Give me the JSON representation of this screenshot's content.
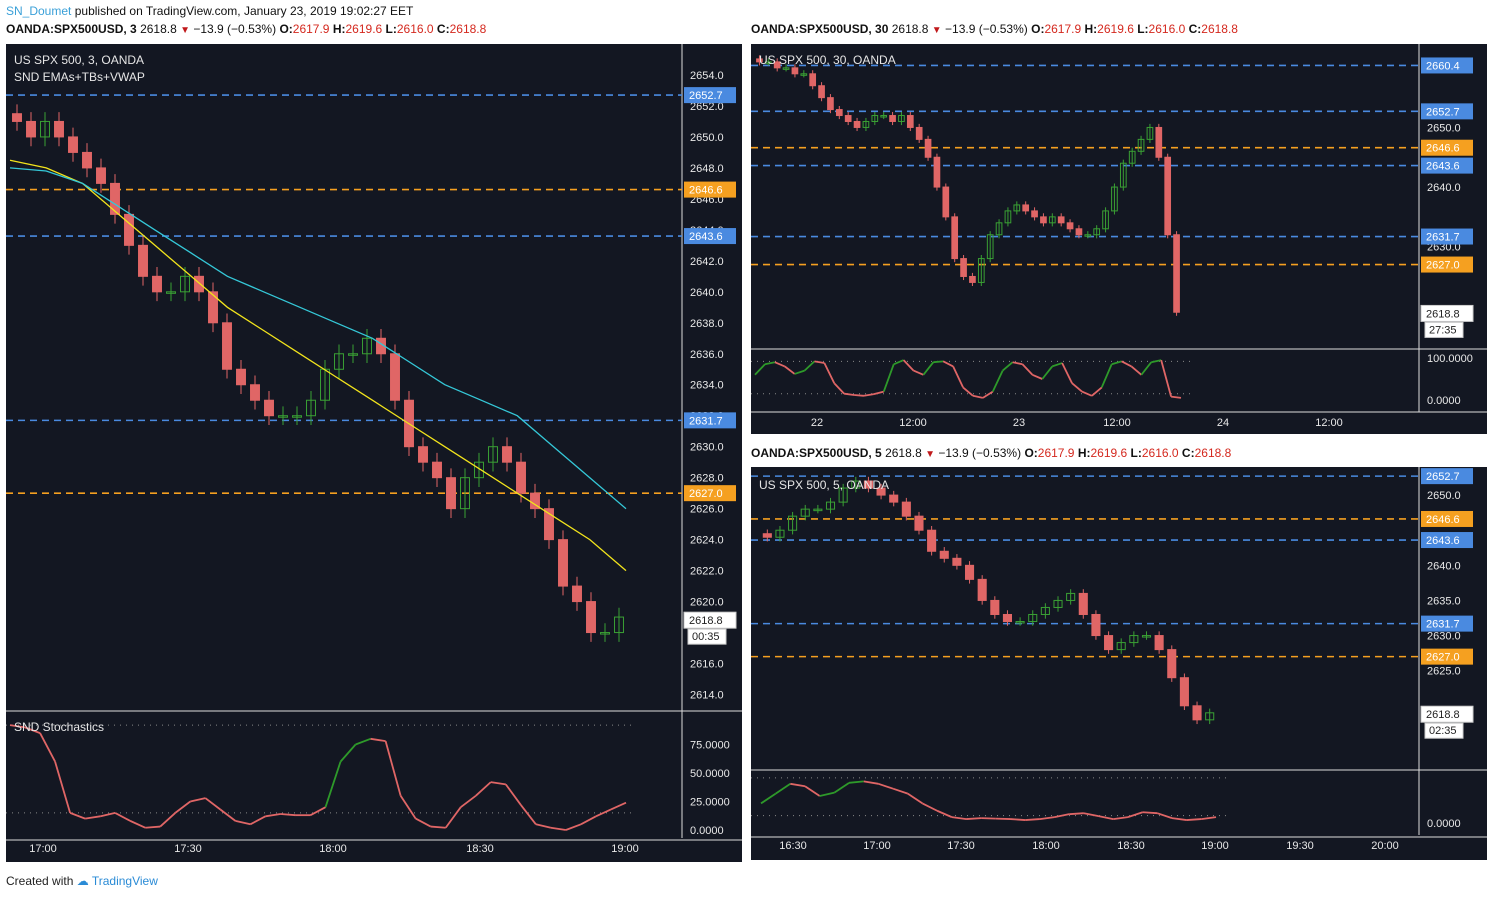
{
  "header": {
    "author": "SN_Doumet",
    "published": "published on TradingView.com, January 23, 2019 19:02:27 EET"
  },
  "footer": {
    "created_with": "Created with",
    "brand": "TradingView"
  },
  "charts": [
    {
      "info": {
        "ticker": "OANDA:SPX500USD, 3",
        "last": "2618.8",
        "change": "−13.9 (−0.53%)",
        "o": "2617.9",
        "h": "2619.6",
        "l": "2616.0",
        "c": "2618.8"
      },
      "title": "US SPX 500, 3, OANDA",
      "subtitle": "SND EMAs+TBs+VWAP",
      "osc_label": "SND Stochastics"
    },
    {
      "info": {
        "ticker": "OANDA:SPX500USD, 30",
        "last": "2618.8",
        "change": "−13.9 (−0.53%)",
        "o": "2617.9",
        "h": "2619.6",
        "l": "2616.0",
        "c": "2618.8"
      },
      "title": "US SPX 500, 30, OANDA"
    },
    {
      "info": {
        "ticker": "OANDA:SPX500USD, 5",
        "last": "2618.8",
        "change": "−13.9 (−0.53%)",
        "o": "2617.9",
        "h": "2619.6",
        "l": "2616.0",
        "c": "2618.8"
      },
      "title": "US SPX 500, 5, OANDA"
    }
  ],
  "chart_data": [
    {
      "type": "line",
      "timeframe": "3",
      "y_ticks": [
        "2654.0",
        "2652.0",
        "2650.0",
        "2648.0",
        "2646.0",
        "2644.0",
        "2642.0",
        "2640.0",
        "2638.0",
        "2636.0",
        "2634.0",
        "2632.0",
        "2630.0",
        "2628.0",
        "2626.0",
        "2624.0",
        "2622.0",
        "2620.0",
        "2616.0",
        "2614.0"
      ],
      "ylim": [
        2613,
        2656
      ],
      "x_ticks": [
        "17:00",
        "17:30",
        "18:00",
        "18:30",
        "19:00"
      ],
      "levels": [
        {
          "value": 2652.7,
          "label": "2652.7",
          "color": "#4a8ae0"
        },
        {
          "value": 2646.6,
          "label": "2646.6",
          "color": "#f5a020"
        },
        {
          "value": 2643.6,
          "label": "2643.6",
          "color": "#4a8ae0"
        },
        {
          "value": 2631.7,
          "label": "2631.7",
          "color": "#4a8ae0"
        },
        {
          "value": 2627.0,
          "label": "2627.0",
          "color": "#f5a020"
        }
      ],
      "price_label": "2618.8",
      "countdown": "00:35",
      "closes": [
        2651,
        2650,
        2651,
        2650,
        2649,
        2648,
        2647,
        2645,
        2643,
        2641,
        2640,
        2640,
        2641,
        2640,
        2638,
        2635,
        2634,
        2633,
        2632,
        2632,
        2632,
        2633,
        2635,
        2636,
        2636,
        2637,
        2636,
        2633,
        2630,
        2629,
        2628,
        2626,
        2628,
        2629,
        2630,
        2629,
        2627,
        2626,
        2624,
        2621,
        2620,
        2618,
        2618,
        2619
      ],
      "ema_fast": [
        2648.5,
        2648,
        2647,
        2645,
        2643,
        2641,
        2639,
        2637.5,
        2636,
        2634.5,
        2633,
        2631.5,
        2630,
        2628.5,
        2627,
        2625.5,
        2624,
        2622
      ],
      "ema_slow": [
        2648,
        2647.8,
        2647,
        2645.5,
        2644,
        2642.5,
        2641,
        2640,
        2639,
        2638,
        2637,
        2635.5,
        2634,
        2633,
        2632,
        2630,
        2628,
        2626
      ],
      "y_ticks_osc": [
        "75.0000",
        "50.0000",
        "25.0000",
        "0.0000"
      ],
      "stochastic": [
        92,
        90,
        85,
        60,
        15,
        10,
        12,
        15,
        8,
        2,
        3,
        15,
        25,
        28,
        18,
        8,
        5,
        12,
        14,
        13,
        13,
        20,
        60,
        75,
        80,
        78,
        30,
        10,
        3,
        2,
        20,
        30,
        42,
        40,
        22,
        5,
        2,
        0,
        5,
        12,
        18,
        24
      ]
    },
    {
      "type": "line",
      "timeframe": "30",
      "y_ticks": [
        "2650.0",
        "2640.0",
        "2630.0"
      ],
      "ylim": [
        2613,
        2664
      ],
      "x_ticks": [
        "22",
        "12:00",
        "23",
        "12:00",
        "24",
        "12:00"
      ],
      "levels": [
        {
          "value": 2660.4,
          "label": "2660.4",
          "color": "#4a8ae0"
        },
        {
          "value": 2652.7,
          "label": "2652.7",
          "color": "#4a8ae0"
        },
        {
          "value": 2646.6,
          "label": "2646.6",
          "color": "#f5a020"
        },
        {
          "value": 2643.6,
          "label": "2643.6",
          "color": "#4a8ae0"
        },
        {
          "value": 2631.7,
          "label": "2631.7",
          "color": "#4a8ae0"
        },
        {
          "value": 2627.0,
          "label": "2627.0",
          "color": "#f5a020"
        }
      ],
      "price_label": "2618.8",
      "countdown": "27:35",
      "closes": [
        2661,
        2661,
        2660,
        2660,
        2659,
        2659,
        2657,
        2655,
        2653,
        2652,
        2651,
        2650,
        2651,
        2652,
        2652,
        2651,
        2652,
        2650,
        2648,
        2645,
        2640,
        2635,
        2628,
        2625,
        2624,
        2628,
        2632,
        2634,
        2636,
        2637,
        2636,
        2635,
        2634,
        2635,
        2634,
        2633,
        2632,
        2632,
        2633,
        2636,
        2640,
        2644,
        2646,
        2648,
        2650,
        2645,
        2632,
        2619
      ],
      "y_ticks_osc": [
        "100.0000",
        "0.0000"
      ],
      "stochastic": [
        60,
        85,
        90,
        80,
        62,
        70,
        92,
        88,
        40,
        15,
        12,
        10,
        14,
        20,
        85,
        95,
        70,
        60,
        90,
        92,
        80,
        30,
        10,
        5,
        20,
        70,
        90,
        85,
        60,
        50,
        80,
        88,
        40,
        20,
        10,
        30,
        85,
        92,
        80,
        60,
        90,
        95,
        8,
        5
      ]
    },
    {
      "type": "line",
      "timeframe": "5",
      "y_ticks": [
        "2650.0",
        "2640.0",
        "2635.0",
        "2630.0",
        "2625.0"
      ],
      "ylim": [
        2611,
        2654
      ],
      "x_ticks": [
        "16:30",
        "17:00",
        "17:30",
        "18:00",
        "18:30",
        "19:00",
        "19:30",
        "20:00"
      ],
      "levels": [
        {
          "value": 2652.7,
          "label": "2652.7",
          "color": "#4a8ae0"
        },
        {
          "value": 2646.6,
          "label": "2646.6",
          "color": "#f5a020"
        },
        {
          "value": 2643.6,
          "label": "2643.6",
          "color": "#4a8ae0"
        },
        {
          "value": 2631.7,
          "label": "2631.7",
          "color": "#4a8ae0"
        },
        {
          "value": 2627.0,
          "label": "2627.0",
          "color": "#f5a020"
        }
      ],
      "price_label": "2618.8",
      "countdown": "02:35",
      "closes": [
        2644,
        2645,
        2647,
        2648,
        2648,
        2649,
        2651,
        2652,
        2651,
        2650,
        2649,
        2647,
        2645,
        2642,
        2641,
        2640,
        2638,
        2635,
        2633,
        2632,
        2632,
        2633,
        2634,
        2635,
        2636,
        2633,
        2630,
        2628,
        2629,
        2630,
        2630,
        2628,
        2624,
        2620,
        2618,
        2619
      ],
      "y_ticks_osc": [
        "0.0000"
      ],
      "stochastic": [
        40,
        60,
        80,
        75,
        55,
        62,
        82,
        85,
        80,
        70,
        60,
        40,
        25,
        12,
        8,
        10,
        9,
        8,
        6,
        8,
        12,
        18,
        20,
        14,
        8,
        12,
        22,
        20,
        10,
        6,
        8,
        12
      ]
    }
  ]
}
